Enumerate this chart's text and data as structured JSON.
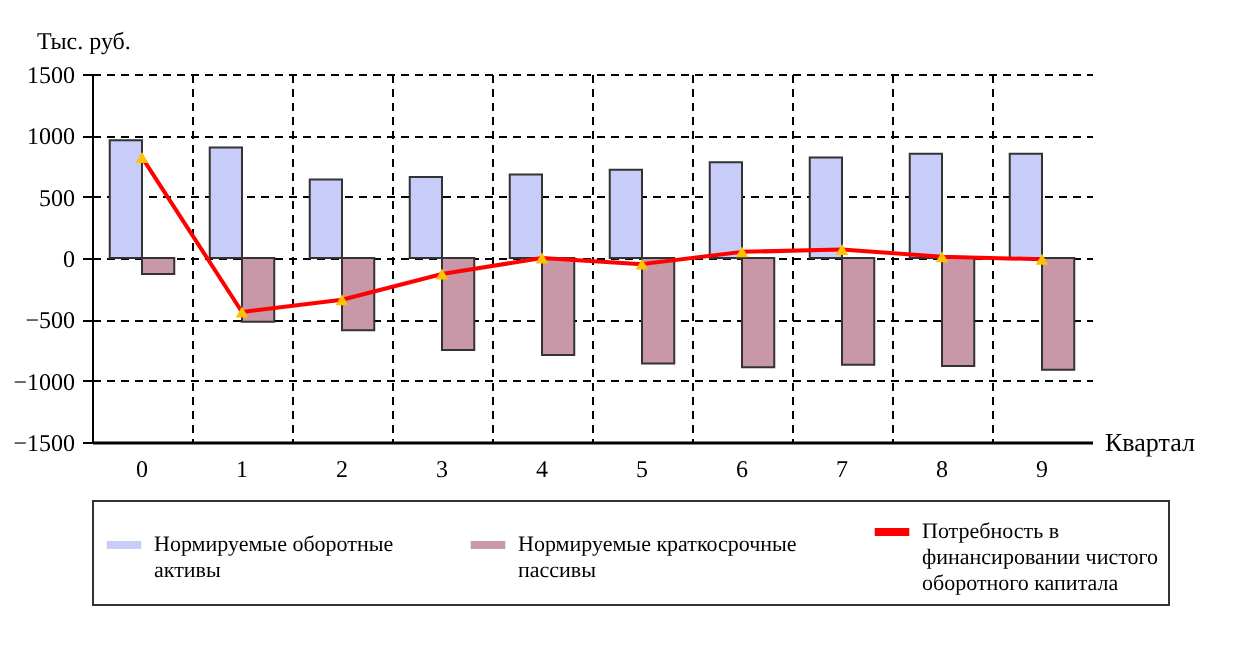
{
  "chart_data": {
    "type": "bar",
    "ylabel": "Тыс. руб.",
    "xlabel": "Квартал",
    "categories": [
      "0",
      "1",
      "2",
      "3",
      "4",
      "5",
      "6",
      "7",
      "8",
      "9"
    ],
    "series": [
      {
        "name": "Нормируемые оборотные активы",
        "color": "#c8ccf8",
        "values": [
          960,
          900,
          640,
          660,
          680,
          720,
          780,
          820,
          850,
          850
        ]
      },
      {
        "name": "Нормируемые краткосрочные пассивы",
        "color": "#c898a8",
        "values": [
          -130,
          -520,
          -590,
          -750,
          -790,
          -860,
          -890,
          -870,
          -880,
          -910
        ]
      },
      {
        "name": "Потребность в финансировании чистого оборотного капитала",
        "type": "line",
        "color": "#ff0000",
        "values": [
          820,
          -440,
          -340,
          -130,
          0,
          -50,
          50,
          70,
          10,
          -10
        ]
      }
    ],
    "ylim": [
      -1500,
      1500
    ],
    "yticks": [
      -1500,
      -1000,
      -500,
      0,
      500,
      1000,
      1500
    ],
    "grid": true,
    "legend": "bottom",
    "marker": "triangle",
    "line_style": "solid"
  }
}
